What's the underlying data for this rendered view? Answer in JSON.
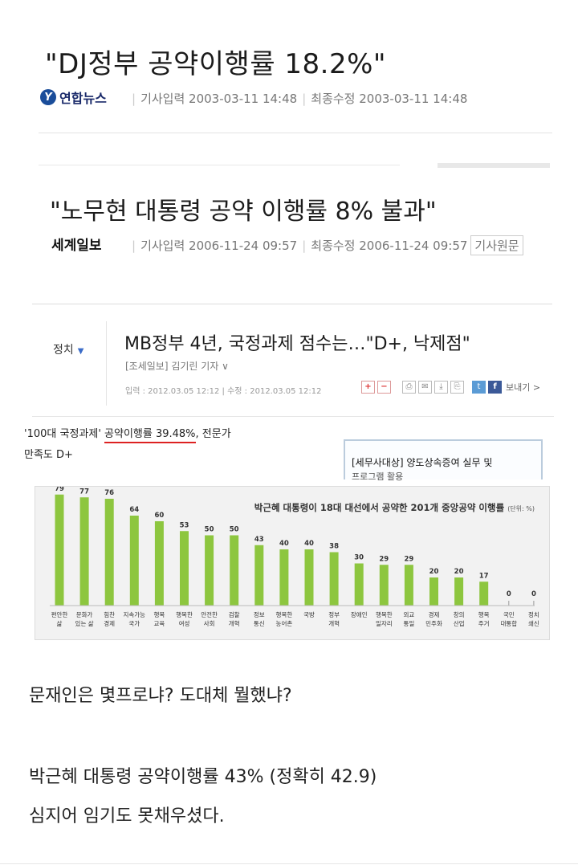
{
  "clip1": {
    "headline": "\"DJ정부 공약이행률 18.2%\"",
    "source_logo": "연합뉴스",
    "meta_input": "기사입력 2003-03-11 14:48",
    "meta_update": "최종수정 2003-03-11 14:48"
  },
  "clip2": {
    "headline": "\"노무현 대통령 공약 이행률 8% 불과\"",
    "source_logo": "세계일보",
    "meta_input": "기사입력 2006-11-24 09:57",
    "meta_update": "최종수정 2006-11-24 09:57",
    "original_button": "기사원문"
  },
  "clip3": {
    "category": "정치",
    "headline": "MB정부 4년, 국정과제 점수는…\"D+, 낙제점\"",
    "byline": "[조세일보] 김기린 기자 ∨",
    "timestamp": "입력 : 2012.03.05 12:12 | 수정 : 2012.03.05 12:12",
    "share_label": "보내기 >",
    "lead_prefix": "'100대 국정과제' ",
    "lead_underlined": "공약이행률 39.48%",
    "lead_suffix": ", 전문가",
    "lead_line2": "만족도 D+",
    "ad_line1": "[세무사대상] 양도상속증여 실무 및",
    "ad_line2": "프로그램 활용"
  },
  "chart_data": {
    "type": "bar",
    "title": "박근혜 대통령이 18대 대선에서 공약한 201개 중앙공약 이행률",
    "unit": "(단위: %)",
    "bar_color": "#8dc63f",
    "categories": [
      [
        "편안한",
        "삶"
      ],
      [
        "문화가",
        "있는 삶"
      ],
      [
        "힘찬",
        "경제"
      ],
      [
        "지속가능",
        "국가"
      ],
      [
        "행복",
        "교육"
      ],
      [
        "행복한",
        "여성"
      ],
      [
        "안전한",
        "사회"
      ],
      [
        "검찰",
        "개혁"
      ],
      [
        "정보",
        "통신"
      ],
      [
        "행복한",
        "농어촌"
      ],
      [
        "국방",
        ""
      ],
      [
        "정부",
        "개혁"
      ],
      [
        "장애인",
        ""
      ],
      [
        "행복한",
        "일자리"
      ],
      [
        "외교",
        "통일"
      ],
      [
        "경제",
        "민주화"
      ],
      [
        "창의",
        "산업"
      ],
      [
        "행복",
        "주거"
      ],
      [
        "국민",
        "대통합"
      ],
      [
        "정치",
        "쇄신"
      ]
    ],
    "values": [
      79,
      77,
      76,
      64,
      60,
      53,
      50,
      50,
      43,
      40,
      40,
      38,
      30,
      29,
      29,
      20,
      20,
      17,
      0,
      0
    ],
    "ylim": [
      0,
      80
    ]
  },
  "body": {
    "p1": "문재인은 몇프로냐? 도대체 뭘했냐?",
    "p2": "박근혜 대통령 공약이행률 43% (정확히 42.9)",
    "p3": "심지어 임기도 못채우셨다."
  }
}
